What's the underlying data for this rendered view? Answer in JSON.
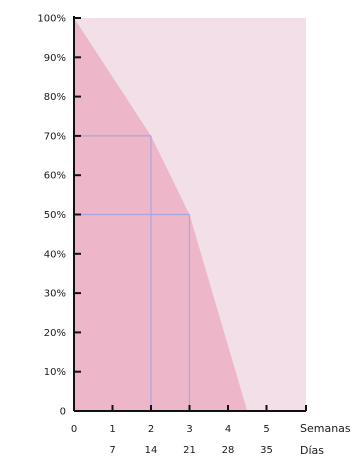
{
  "chart_data": {
    "type": "area",
    "background_color": "#f2dfe8",
    "fill_color": "#eeb7c9",
    "guide_color": "#a9a5dd",
    "axis_color": "#111111",
    "ylim": [
      0,
      100
    ],
    "xlim": [
      0,
      6
    ],
    "y_ticks": [
      {
        "value": 0,
        "label": "0"
      },
      {
        "value": 10,
        "label": "10%"
      },
      {
        "value": 20,
        "label": "20%"
      },
      {
        "value": 30,
        "label": "30%"
      },
      {
        "value": 40,
        "label": "40%"
      },
      {
        "value": 50,
        "label": "50%"
      },
      {
        "value": 60,
        "label": "60%"
      },
      {
        "value": 70,
        "label": "70%"
      },
      {
        "value": 80,
        "label": "80%"
      },
      {
        "value": 90,
        "label": "90%"
      },
      {
        "value": 100,
        "label": "100%"
      }
    ],
    "x_ticks": [
      {
        "value": 0,
        "weeks": "0",
        "days": ""
      },
      {
        "value": 1,
        "weeks": "1",
        "days": "7"
      },
      {
        "value": 2,
        "weeks": "2",
        "days": "14"
      },
      {
        "value": 3,
        "weeks": "3",
        "days": "21"
      },
      {
        "value": 4,
        "weeks": "4",
        "days": "28"
      },
      {
        "value": 5,
        "weeks": "5",
        "days": "35"
      }
    ],
    "x_labels": {
      "weeks": "Semanas",
      "days": "Días"
    },
    "series": [
      {
        "points": [
          {
            "x": 0,
            "y": 100
          },
          {
            "x": 2,
            "y": 70
          },
          {
            "x": 3,
            "y": 50
          },
          {
            "x": 4.5,
            "y": 0
          }
        ]
      }
    ],
    "guides": [
      {
        "x": 2,
        "y": 70
      },
      {
        "x": 3,
        "y": 50
      }
    ]
  }
}
